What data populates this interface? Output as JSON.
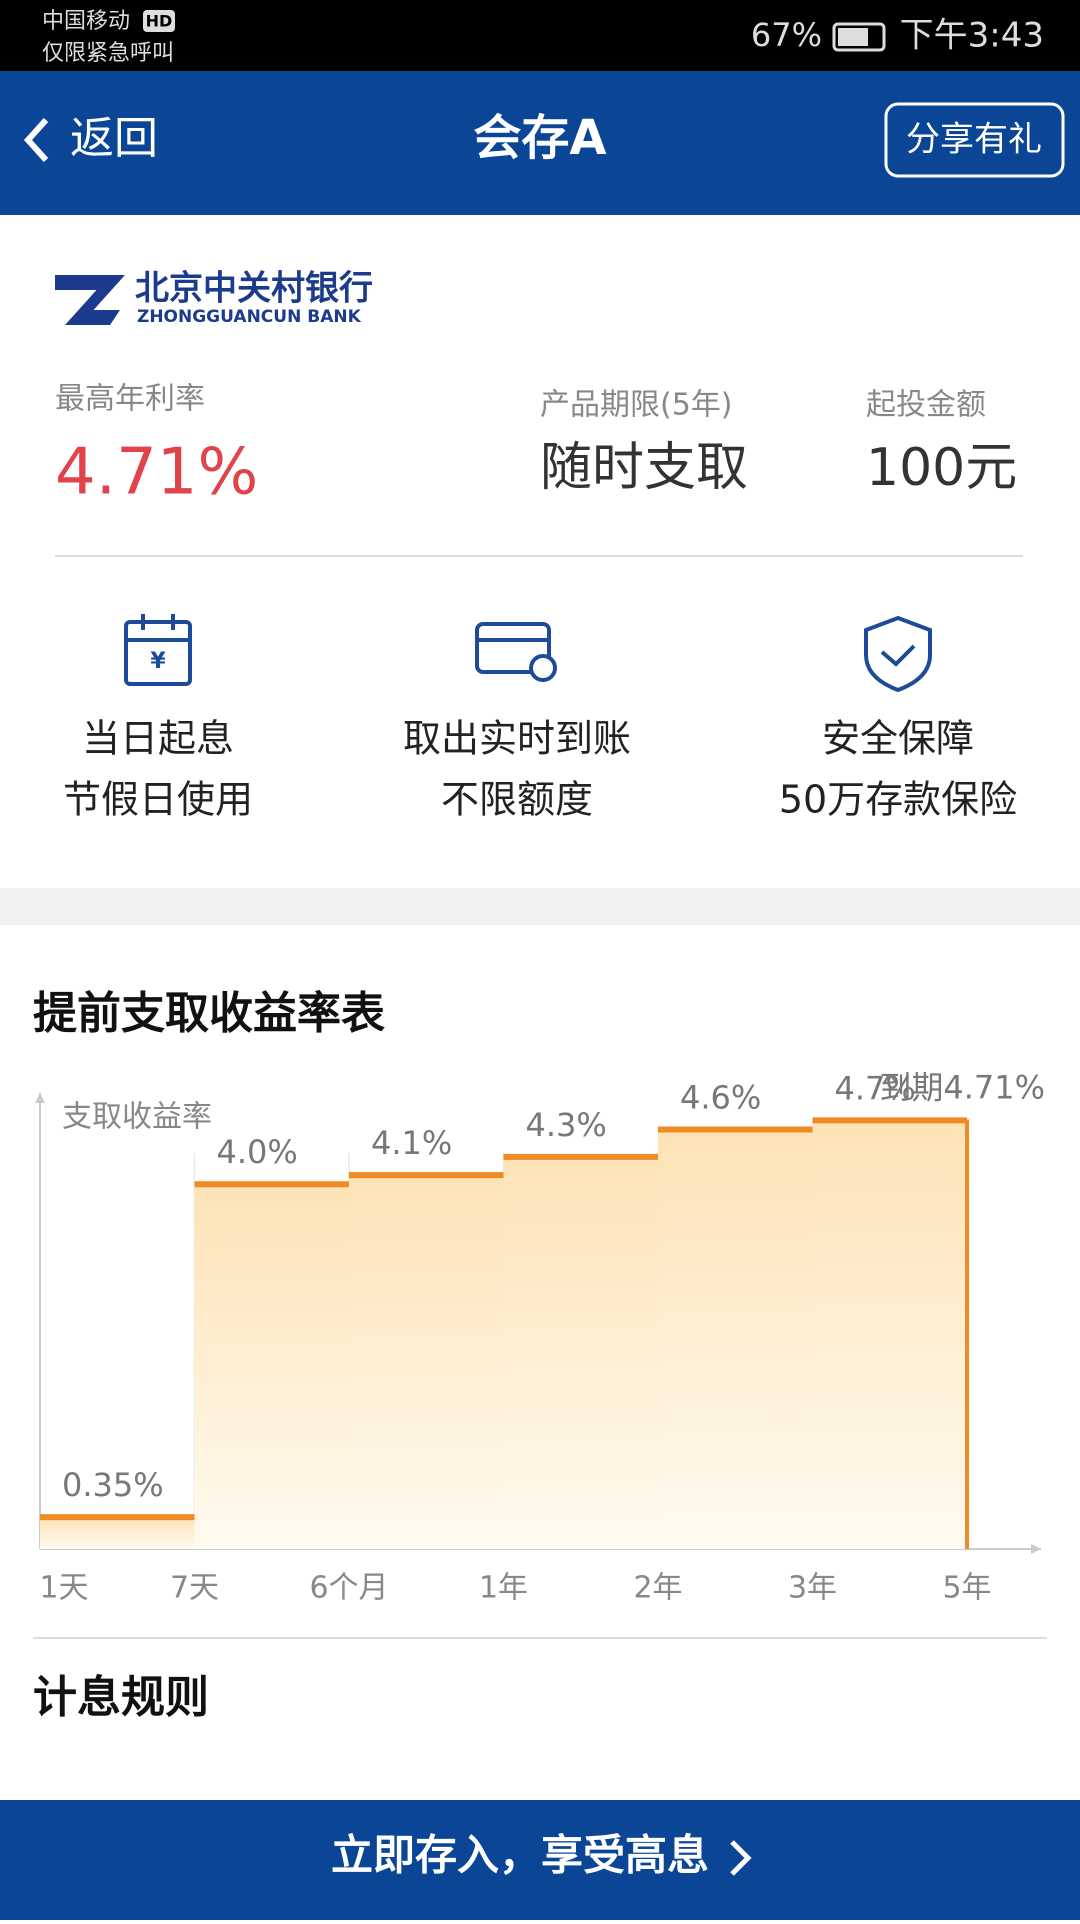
{
  "status_bar": {
    "carrier": "中国移动",
    "hd": "HD",
    "emergency": "仅限紧急呼叫",
    "battery": "67%",
    "time": "下午3:43"
  },
  "nav": {
    "back": "返回",
    "title": "会存A",
    "share": "分享有礼"
  },
  "product": {
    "bank_name": "北京中关村银行",
    "bank_name_en": "ZHONGGUANCUN BANK",
    "rate_label": "最高年利率",
    "rate": "4.71%",
    "term_label": "产品期限(5年)",
    "term": "随时支取",
    "min_label": "起投金额",
    "min": "100元"
  },
  "features": [
    {
      "line1": "当日起息",
      "line2": "节假日使用"
    },
    {
      "line1": "取出实时到账",
      "line2": "不限额度"
    },
    {
      "line1": "安全保障",
      "line2": "50万存款保险"
    }
  ],
  "chart_data": {
    "type": "step",
    "title": "提前支取收益率表",
    "y_label": "支取收益率",
    "categories": [
      "1天",
      "7天",
      "6个月",
      "1年",
      "2年",
      "3年",
      "5年"
    ],
    "values": [
      0.35,
      4.0,
      4.1,
      4.3,
      4.6,
      4.7,
      4.71
    ],
    "value_labels": [
      "0.35%",
      "4.0%",
      "4.1%",
      "4.3%",
      "4.6%",
      "4.7%",
      "到期4.71%"
    ],
    "color": "#f08a24",
    "ylim": [
      0,
      5
    ]
  },
  "section": {
    "title": "计息规则"
  },
  "button": {
    "label": "立即存入，享受高息"
  }
}
